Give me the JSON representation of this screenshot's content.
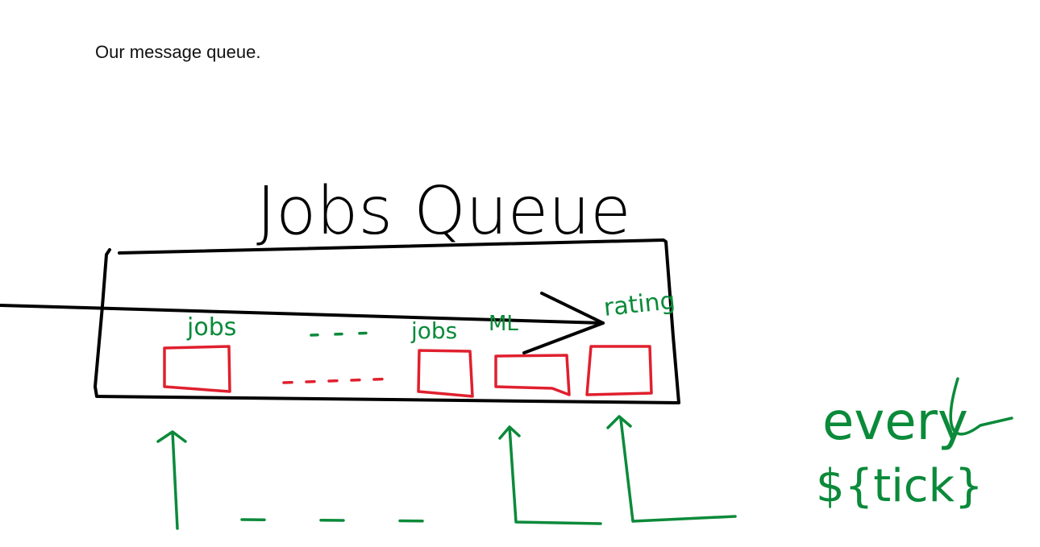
{
  "caption": "Our message queue.",
  "diagram": {
    "title": "Jobs Queue",
    "labels": {
      "jobs": "jobs",
      "jobs2": "jobs",
      "ml": "ML",
      "rating": "rating",
      "every": "every",
      "tick": "${tick}"
    },
    "colors": {
      "outline": "#000000",
      "slots": "#e0202e",
      "annotations": "#0b8a3a"
    }
  }
}
